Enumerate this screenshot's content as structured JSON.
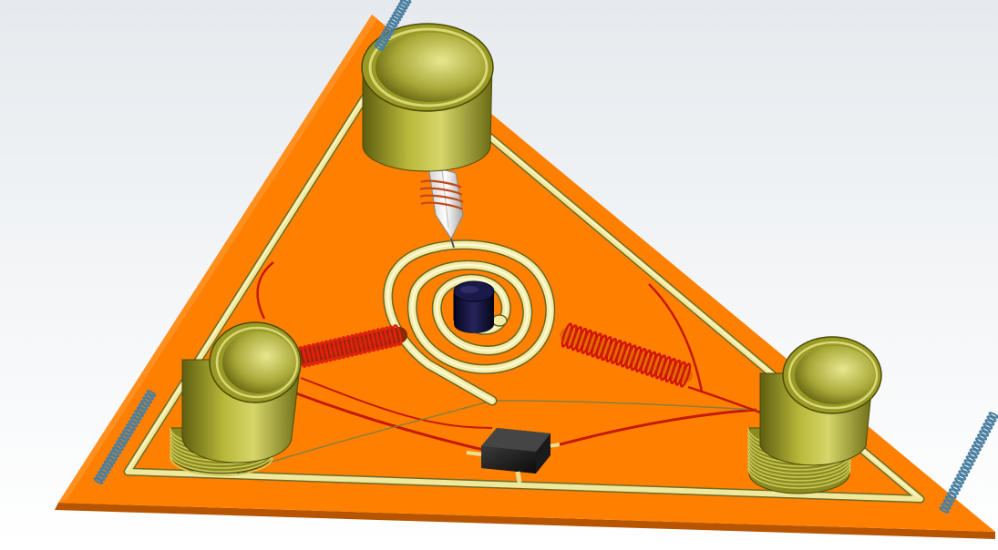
{
  "scene": {
    "components": [
      {
        "name": "triangular-base-plate",
        "color": "#ff8000"
      },
      {
        "name": "cylinder-top",
        "color": "#8f8f1e"
      },
      {
        "name": "cylinder-left",
        "color": "#8f8f1e"
      },
      {
        "name": "cylinder-right",
        "color": "#8f8f1e"
      },
      {
        "name": "spiral-coil",
        "color": "#f2eca4"
      },
      {
        "name": "center-magnet",
        "color": "#0a0a2e"
      },
      {
        "name": "spring-left",
        "color": "#c01010"
      },
      {
        "name": "spring-right",
        "color": "#c01010"
      },
      {
        "name": "connector-box",
        "color": "#141414"
      },
      {
        "name": "crystal-probe",
        "color": "#f5f5f5"
      },
      {
        "name": "end-spring-top",
        "color": "#5a8fae"
      },
      {
        "name": "end-spring-left",
        "color": "#5a8fae"
      },
      {
        "name": "end-spring-right",
        "color": "#5a8fae"
      }
    ],
    "colors": {
      "plate": "#ff8000",
      "plate_edge": "#c85a00",
      "rail": "#f0e89a",
      "brass": "#a5a52a",
      "copper_wire": "#c41a0a",
      "magnet": "#0b0b35",
      "blue_spring": "#4a7fa0"
    }
  }
}
